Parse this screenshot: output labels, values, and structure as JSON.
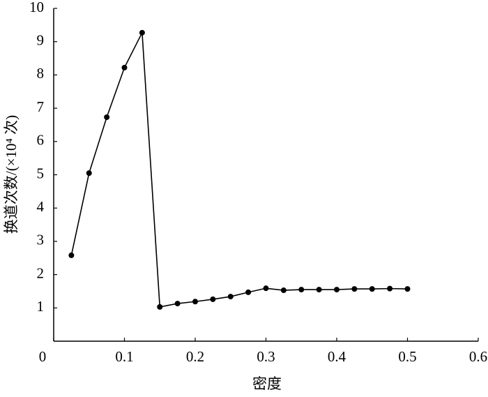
{
  "chart_data": {
    "type": "line",
    "x_label": "密度",
    "y_label": "换道次数/(×10⁴ 次)",
    "x": [
      0.025,
      0.05,
      0.075,
      0.1,
      0.125,
      0.15,
      0.175,
      0.2,
      0.225,
      0.25,
      0.275,
      0.3,
      0.325,
      0.35,
      0.375,
      0.4,
      0.425,
      0.45,
      0.475,
      0.5
    ],
    "series": [
      {
        "color": "#000000",
        "values": [
          2.58,
          5.05,
          6.73,
          8.22,
          9.27,
          1.03,
          1.13,
          1.19,
          1.26,
          1.34,
          1.47,
          1.59,
          1.53,
          1.55,
          1.55,
          1.55,
          1.57,
          1.57,
          1.58,
          1.57
        ]
      }
    ],
    "xlim": [
      0,
      0.6
    ],
    "xticks": [
      0,
      0.1,
      0.2,
      0.3,
      0.4,
      0.5,
      0.6
    ],
    "ylim": [
      0,
      10
    ],
    "yticks": [
      1,
      2,
      3,
      4,
      5,
      6,
      7,
      8,
      9,
      10
    ],
    "grid": false
  }
}
